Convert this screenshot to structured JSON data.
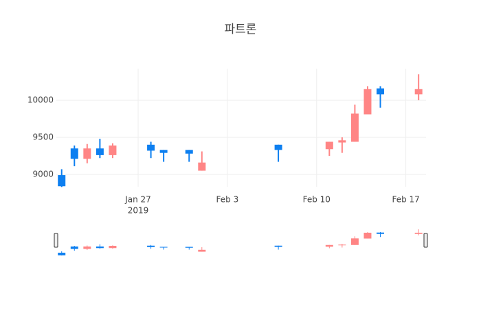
{
  "chart_data": {
    "type": "candlestick",
    "title": "파트론",
    "x": [
      "2019-01-21",
      "2019-01-22",
      "2019-01-23",
      "2019-01-24",
      "2019-01-25",
      "2019-01-28",
      "2019-01-29",
      "2019-01-31",
      "2019-02-01",
      "2019-02-07",
      "2019-02-11",
      "2019-02-12",
      "2019-02-13",
      "2019-02-14",
      "2019-02-15",
      "2019-02-18"
    ],
    "open": [
      8990,
      9350,
      9210,
      9350,
      9260,
      9400,
      9330,
      9330,
      9050,
      9400,
      9340,
      9430,
      9440,
      9810,
      10160,
      10080
    ],
    "high": [
      9070,
      9390,
      9410,
      9480,
      9420,
      9440,
      9330,
      9330,
      9310,
      9400,
      9440,
      9500,
      9940,
      10190,
      10190,
      10350
    ],
    "low": [
      8830,
      9110,
      9150,
      9220,
      9220,
      9220,
      9170,
      9170,
      9050,
      9170,
      9250,
      9290,
      9440,
      9810,
      9900,
      10000
    ],
    "close": [
      8840,
      9210,
      9350,
      9260,
      9390,
      9320,
      9290,
      9280,
      9160,
      9330,
      9440,
      9460,
      9820,
      10150,
      10080,
      10150
    ],
    "increasing_color": "#ff8585",
    "decreasing_color": "#0d7ff0",
    "xlim": [
      "2019-01-20T14:00:00Z",
      "2019-02-18T14:00:00Z"
    ],
    "xticks": [
      {
        "value": "2019-01-27",
        "label": "Jan 27"
      },
      {
        "value": "2019-02-03",
        "label": "Feb 3"
      },
      {
        "value": "2019-02-10",
        "label": "Feb 10"
      },
      {
        "value": "2019-02-17",
        "label": "Feb 17"
      }
    ],
    "xtick_year": "2019",
    "ylim": [
      8833,
      10426
    ],
    "yticks": [
      9000,
      9500,
      10000
    ],
    "grid": true,
    "rangeslider": true
  }
}
